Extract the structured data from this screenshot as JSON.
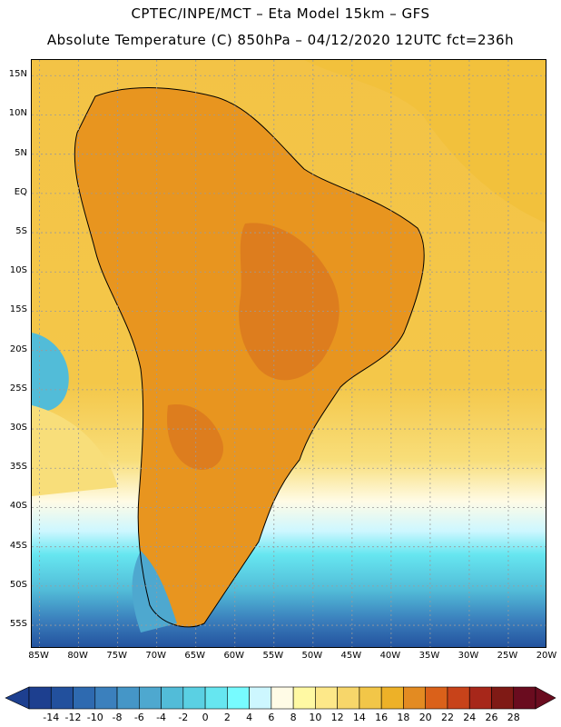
{
  "title_line1": "CPTEC/INPE/MCT –  Eta Model 15km – GFS",
  "title_line2": "Absolute Temperature (C) 850hPa – 04/12/2020 12UTC fct=236h",
  "map": {
    "lat_labels": [
      "15N",
      "10N",
      "5N",
      "EQ",
      "5S",
      "10S",
      "15S",
      "20S",
      "25S",
      "30S",
      "35S",
      "40S",
      "45S",
      "50S",
      "55S"
    ],
    "lat_values": [
      15,
      10,
      5,
      0,
      -5,
      -10,
      -15,
      -20,
      -25,
      -30,
      -35,
      -40,
      -45,
      -50,
      -55
    ],
    "lon_labels": [
      "85W",
      "80W",
      "75W",
      "70W",
      "65W",
      "60W",
      "55W",
      "50W",
      "45W",
      "40W",
      "35W",
      "30W",
      "25W",
      "20W"
    ],
    "lon_values": [
      -85,
      -80,
      -75,
      -70,
      -65,
      -60,
      -55,
      -50,
      -45,
      -40,
      -35,
      -30,
      -25,
      -20
    ],
    "extent": {
      "lon_min": -86,
      "lon_max": -20,
      "lat_min": -58,
      "lat_max": 17
    },
    "gridlines": true
  },
  "colorbar": {
    "labels": [
      "-14",
      "-12",
      "-10",
      "-8",
      "-6",
      "-4",
      "-2",
      "0",
      "2",
      "4",
      "6",
      "8",
      "10",
      "12",
      "14",
      "16",
      "18",
      "20",
      "22",
      "24",
      "26",
      "28"
    ],
    "colors": [
      "#1d3f8f",
      "#22509d",
      "#2e6ab0",
      "#3b80bd",
      "#4596c7",
      "#4ea8cf",
      "#52bcd8",
      "#5ad0e3",
      "#66e6f0",
      "#77fbff",
      "#cdf7ff",
      "#fffbe6",
      "#fff9a3",
      "#fde889",
      "#f7d66a",
      "#f2c648",
      "#edb128",
      "#e38b22",
      "#da611a",
      "#c8431a",
      "#a7271a",
      "#7f1a15",
      "#6a0c1f"
    ]
  },
  "colors": {
    "warm_land": "#e8951f",
    "hot_core": "#dd7d1e",
    "ocean_warm": "#f2c13c",
    "ocean_mild": "#f8dc6c",
    "cold": "#5bcbe0",
    "deep_cold": "#2e6cae"
  }
}
